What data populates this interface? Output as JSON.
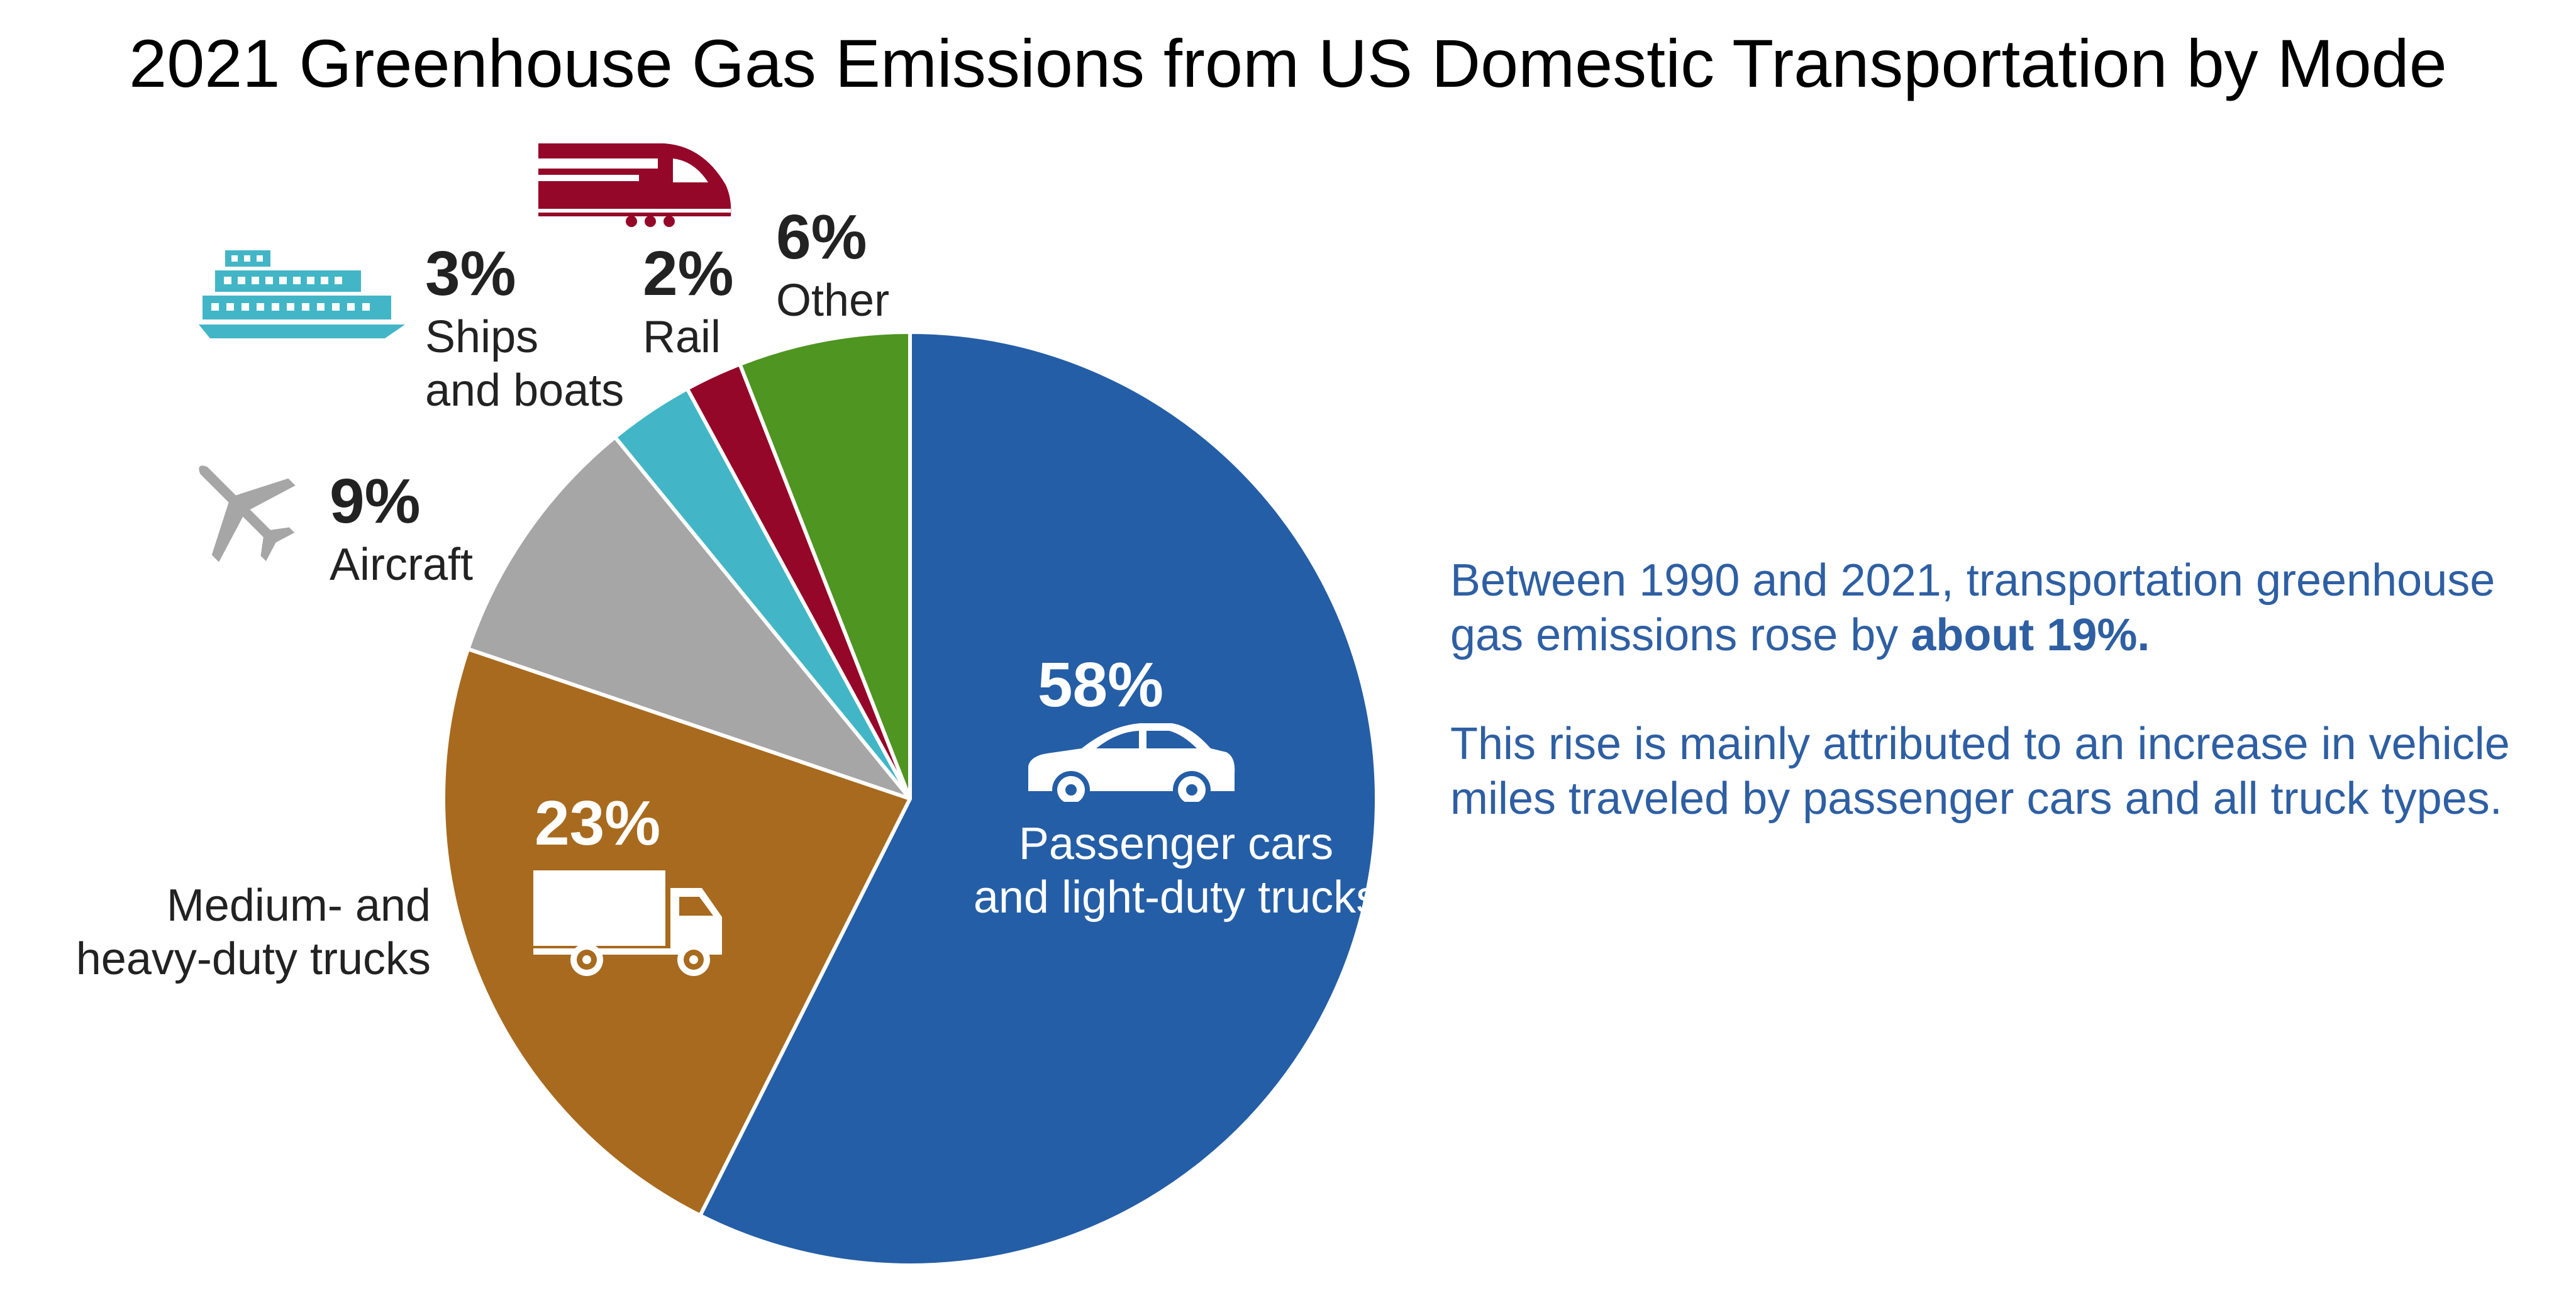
{
  "chart_data": {
    "type": "pie",
    "title": "2021 Greenhouse Gas Emissions from US Domestic Transportation by Mode",
    "slices": [
      {
        "label": "Passenger cars and light-duty trucks",
        "value": 58,
        "value_label": "58%",
        "color": "#245ea6",
        "icon": "car-icon"
      },
      {
        "label": "Medium- and heavy-duty trucks",
        "value": 23,
        "value_label": "23%",
        "color": "#a86a1e",
        "icon": "truck-icon"
      },
      {
        "label": "Aircraft",
        "value": 9,
        "value_label": "9%",
        "color": "#a6a6a6",
        "icon": "airplane-icon"
      },
      {
        "label": "Ships and boats",
        "value": 3,
        "value_label": "3%",
        "color": "#42b6c6",
        "icon": "ship-icon"
      },
      {
        "label": "Rail",
        "value": 2,
        "value_label": "2%",
        "color": "#950728",
        "icon": "train-icon"
      },
      {
        "label": "Other",
        "value": 6,
        "value_label": "6%",
        "color": "#4e9521",
        "icon": ""
      }
    ],
    "legend": "none"
  },
  "labels": {
    "cars_line1": "Passenger cars",
    "cars_line2": "and light-duty trucks",
    "trucks_line1": "Medium- and",
    "trucks_line2": "heavy-duty trucks",
    "ships_line1": "Ships",
    "ships_line2": "and boats"
  },
  "note": {
    "p1_text": "Between 1990 and 2021, transportation greenhouse gas emissions rose by ",
    "p1_bold": "about 19%.",
    "p2_text": "This rise is mainly attributed to an increase in vehicle miles traveled by passenger cars and all truck types."
  }
}
